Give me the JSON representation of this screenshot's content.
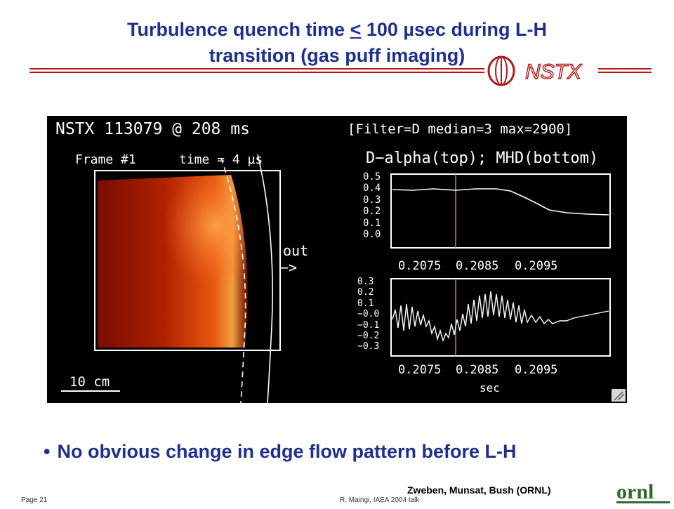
{
  "slide": {
    "title_line1_pre": "Turbulence quench time ",
    "title_line1_lt": "<",
    "title_line1_post": " 100 µsec during L-H",
    "title_line2": "transition (gas puff imaging)",
    "bullet_marker": "•",
    "bullet_text": "No obvious change in edge flow pattern before L-H",
    "credit": "Zweben, Munsat, Bush (ORNL)",
    "footer_page": "Page 21",
    "footer_author": "R. Maingi, IAEA 2004 talk",
    "logo_nstx": "NSTX",
    "logo_ornl": "ornl"
  },
  "figure": {
    "header_left": "NSTX 113079   @ 208 ms",
    "header_right": "[Filter=D  median=3   max=2900]",
    "frame_label": "Frame #1",
    "time_label": "time = 4 µs",
    "plot_title": "D−alpha(top); MHD(bottom)",
    "out_label": "out",
    "out_arrow": "−>",
    "scale_label": "10 cm",
    "x_ticks": [
      "0.2075",
      "0.2085",
      "0.2095"
    ],
    "x_axis_label": "sec",
    "top_y_ticks": [
      "0.5",
      "0.4",
      "0.3",
      "0.2",
      "0.1",
      "0.0"
    ],
    "bottom_y_ticks": [
      "0.3",
      "0.2",
      "0.1",
      "−0.0",
      "−0.1",
      "−0.2",
      "−0.3"
    ]
  },
  "colors": {
    "title": "#1f2f8f",
    "rule": "#b01818",
    "panel_bg": "#000000"
  }
}
